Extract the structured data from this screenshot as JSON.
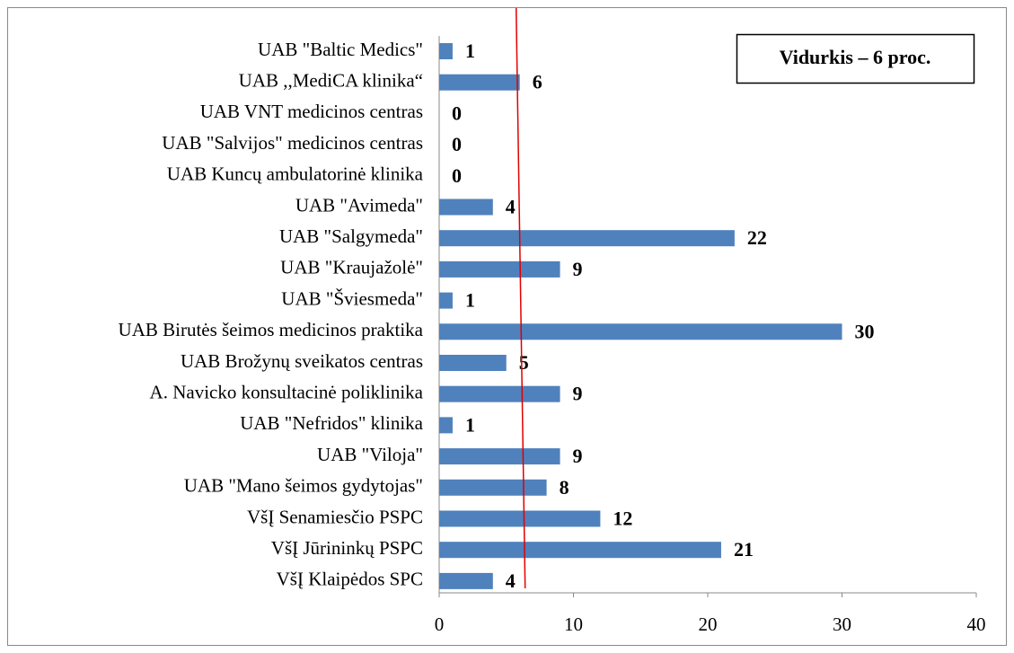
{
  "chart_data": {
    "type": "hbar",
    "annotation": "Vidurkis – 6 proc.",
    "average_line": {
      "value": 6,
      "color": "#e00000"
    },
    "categories": [
      "UAB \"Baltic Medics\"",
      "UAB ,,MediCA klinika“",
      "UAB VNT medicinos centras",
      "UAB \"Salvijos\" medicinos centras",
      "UAB Kuncų ambulatorinė klinika",
      "UAB \"Avimeda\"",
      "UAB \"Salgymeda\"",
      "UAB \"Kraujažolė\"",
      "UAB \"Šviesmeda\"",
      "UAB Birutės šeimos medicinos praktika",
      "UAB Brožynų sveikatos centras",
      "A. Navicko konsultacinė poliklinika",
      "UAB \"Nefridos\" klinika",
      "UAB \"Viloja\"",
      "UAB \"Mano šeimos gydytojas\"",
      "VšĮ Senamiesčio PSPC",
      "VšĮ Jūrininkų PSPC",
      "VšĮ Klaipėdos SPC"
    ],
    "values": [
      1,
      6,
      0,
      0,
      0,
      4,
      22,
      9,
      1,
      30,
      5,
      9,
      1,
      9,
      8,
      12,
      21,
      4
    ],
    "color": "#4f81bd",
    "xlim": [
      0,
      40
    ],
    "xticks": [
      0,
      10,
      20,
      30,
      40
    ],
    "grid": false
  }
}
